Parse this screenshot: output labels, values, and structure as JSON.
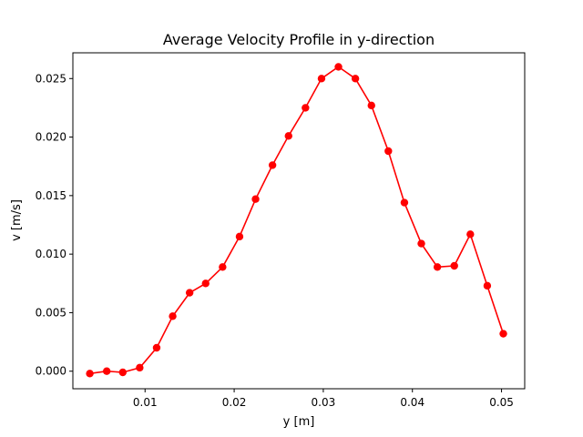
{
  "chart_data": {
    "type": "line",
    "title": "Average Velocity Profile in y-direction",
    "xlabel": "y [m]",
    "ylabel": "v [m/s]",
    "xlim": [
      0.0019,
      0.0526
    ],
    "ylim": [
      -0.0015,
      0.0272
    ],
    "grid": false,
    "x_ticks": [
      0.01,
      0.02,
      0.03,
      0.04,
      0.05
    ],
    "x_tick_labels": [
      "0.01",
      "0.02",
      "0.03",
      "0.04",
      "0.05"
    ],
    "y_ticks": [
      0.0,
      0.005,
      0.01,
      0.015,
      0.02,
      0.025
    ],
    "y_tick_labels": [
      "0.000",
      "0.005",
      "0.010",
      "0.015",
      "0.020",
      "0.025"
    ],
    "color": "#ff0000",
    "series": [
      {
        "marker": "circle",
        "x": [
          0.0038,
          0.0057,
          0.0075,
          0.0094,
          0.0113,
          0.0131,
          0.015,
          0.0168,
          0.0187,
          0.0206,
          0.0224,
          0.0243,
          0.0261,
          0.028,
          0.0298,
          0.0317,
          0.0336,
          0.0354,
          0.0373,
          0.0391,
          0.041,
          0.0428,
          0.0447,
          0.0465,
          0.0484,
          0.0502
        ],
        "y": [
          -0.0002,
          0.0,
          -0.0001,
          0.0003,
          0.002,
          0.0047,
          0.0067,
          0.0075,
          0.0089,
          0.0115,
          0.0147,
          0.0176,
          0.0201,
          0.0225,
          0.025,
          0.026,
          0.025,
          0.0227,
          0.0188,
          0.0144,
          0.0109,
          0.0089,
          0.009,
          0.0117,
          0.0073,
          0.0032
        ]
      }
    ]
  }
}
